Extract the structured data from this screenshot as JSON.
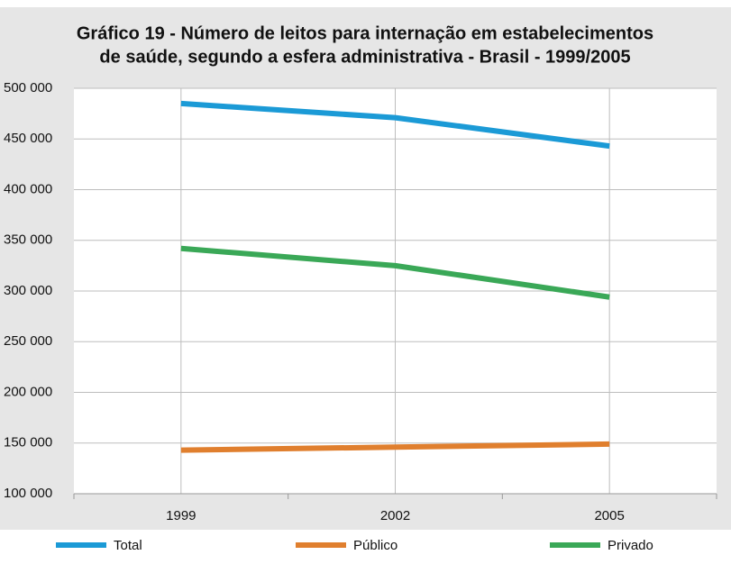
{
  "chart_data": {
    "type": "line",
    "title": [
      "Gráfico 19 - Número de leitos para internação em estabelecimentos",
      "de saúde, segundo a esfera administrativa - Brasil - 1999/2005"
    ],
    "categories": [
      "1999",
      "2002",
      "2005"
    ],
    "series": [
      {
        "name": "Total",
        "color": "#1b9ad6",
        "values": [
          485000,
          471000,
          443000
        ]
      },
      {
        "name": "Público",
        "color": "#e07f2e",
        "values": [
          143000,
          146000,
          149000
        ]
      },
      {
        "name": "Privado",
        "color": "#3aa857",
        "values": [
          342000,
          325000,
          294000
        ]
      }
    ],
    "ylim": [
      100000,
      500000
    ],
    "yticks": [
      {
        "value": 100000,
        "label": "100 000"
      },
      {
        "value": 150000,
        "label": "150 000"
      },
      {
        "value": 200000,
        "label": "200 000"
      },
      {
        "value": 250000,
        "label": "250 000"
      },
      {
        "value": 300000,
        "label": "300 000"
      },
      {
        "value": 350000,
        "label": "350 000"
      },
      {
        "value": 400000,
        "label": "400 000"
      },
      {
        "value": 450000,
        "label": "450 000"
      },
      {
        "value": 500000,
        "label": "500 000"
      }
    ],
    "grid": true,
    "legend": "bottom"
  }
}
